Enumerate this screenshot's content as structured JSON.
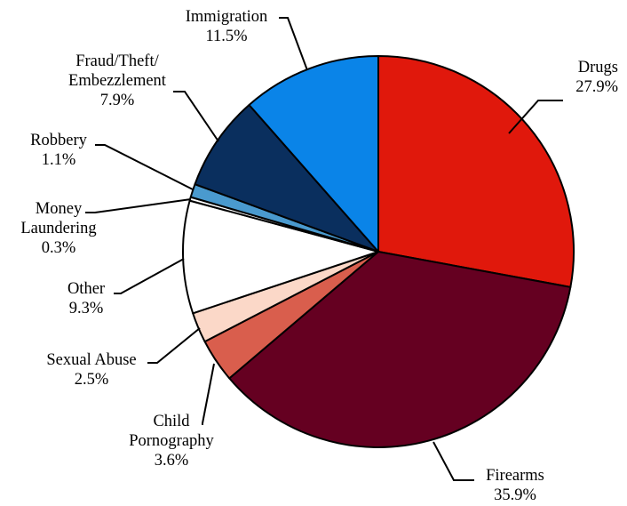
{
  "chart_data": {
    "type": "pie",
    "start_angle_deg": 0,
    "direction": "clockwise",
    "slices": [
      {
        "name": "Drugs",
        "label_lines": [
          "Drugs"
        ],
        "value": 27.9,
        "value_label": "27.9%",
        "color": "#E0180C"
      },
      {
        "name": "Firearms",
        "label_lines": [
          "Firearms"
        ],
        "value": 35.9,
        "value_label": "35.9%",
        "color": "#650021"
      },
      {
        "name": "Child Pornography",
        "label_lines": [
          "Child",
          "Pornography"
        ],
        "value": 3.6,
        "value_label": "3.6%",
        "color": "#D95E4D"
      },
      {
        "name": "Sexual Abuse",
        "label_lines": [
          "Sexual Abuse"
        ],
        "value": 2.5,
        "value_label": "2.5%",
        "color": "#FBD8C8"
      },
      {
        "name": "Other",
        "label_lines": [
          "Other"
        ],
        "value": 9.3,
        "value_label": "9.3%",
        "color": "#FFFFFF"
      },
      {
        "name": "Money Laundering",
        "label_lines": [
          "Money",
          "Laundering"
        ],
        "value": 0.3,
        "value_label": "0.3%",
        "color": "#FFFFFF"
      },
      {
        "name": "Robbery",
        "label_lines": [
          "Robbery"
        ],
        "value": 1.1,
        "value_label": "1.1%",
        "color": "#4A9ACE"
      },
      {
        "name": "Fraud/Theft/Embezzlement",
        "label_lines": [
          "Fraud/Theft/",
          "Embezzlement"
        ],
        "value": 7.9,
        "value_label": "7.9%",
        "color": "#0A2F5E"
      },
      {
        "name": "Immigration",
        "label_lines": [
          "Immigration"
        ],
        "value": 11.5,
        "value_label": "11.5%",
        "color": "#0A84E8"
      }
    ]
  }
}
